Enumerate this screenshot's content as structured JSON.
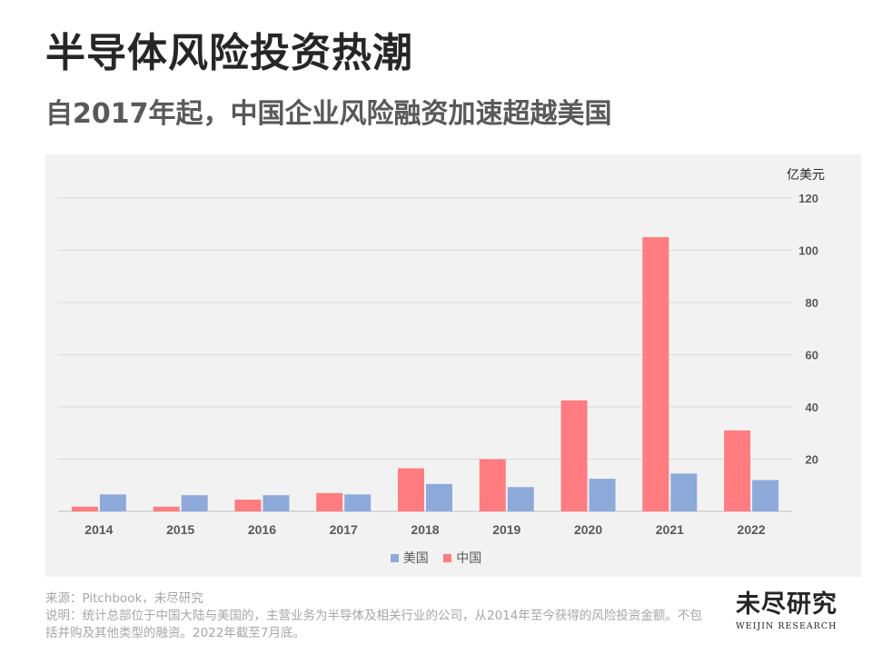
{
  "title": "半导体风险投资热潮",
  "subtitle": "自2017年起，中国企业风险融资加速超越美国",
  "chart_data": {
    "type": "bar",
    "unit": "亿美元",
    "categories": [
      "2014",
      "2015",
      "2016",
      "2017",
      "2018",
      "2019",
      "2020",
      "2021",
      "2022"
    ],
    "series": [
      {
        "name": "中国",
        "color": "#ff7c80",
        "values": [
          1.8,
          1.8,
          4.5,
          7,
          16.5,
          20,
          42.5,
          105,
          31
        ]
      },
      {
        "name": "美国",
        "color": "#8eaadb",
        "values": [
          6.5,
          6.2,
          6.2,
          6.5,
          10.5,
          9.3,
          12.5,
          14.5,
          12
        ]
      }
    ],
    "legend": [
      "美国",
      "中国"
    ],
    "ylim": [
      0,
      120
    ],
    "yticks": [
      20,
      40,
      60,
      80,
      100,
      120
    ],
    "y_axis_position": "right",
    "grid": true
  },
  "footnote": {
    "source": "来源：Pitchbook，未尽研究",
    "note": "说明：统计总部位于中国大陆与美国的，主营业务为半导体及相关行业的公司，从2014年至今获得的风险投资金额。不包括并购及其他类型的融资。2022年截至7月底。"
  },
  "logo": {
    "cn": "未尽研究",
    "en": "WEIJIN RESEARCH"
  }
}
